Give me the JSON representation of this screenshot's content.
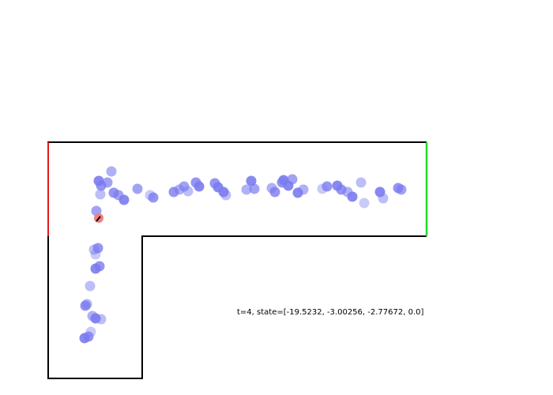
{
  "status": {
    "text": "t=4, state=[-19.5232, -3.00256, -2.77672, 0.0]"
  },
  "colors": {
    "wall": "#000000",
    "start_edge": "#e31a1c",
    "goal_edge": "#22dd22",
    "particle": "#7b7bf0",
    "agent": "#f08080",
    "heading": "#000000",
    "background": "#ffffff"
  }
}
